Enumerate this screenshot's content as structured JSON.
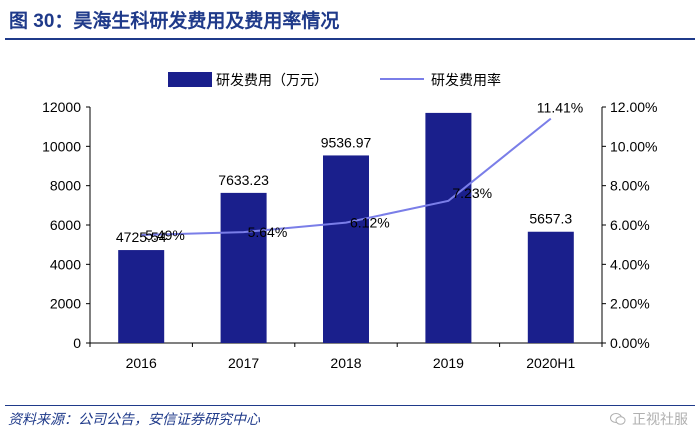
{
  "header": {
    "title": "图 30：昊海生科研发费用及费用率情况"
  },
  "footer": {
    "source": "资料来源：公司公告，安信证券研究中心",
    "watermark": "正视社服"
  },
  "colors": {
    "bar": "#1a1f8c",
    "line": "#7a7ee8",
    "accent": "#1f3a8a",
    "text": "#000000"
  },
  "chart_data": {
    "type": "bar+line",
    "title": "",
    "categories": [
      "2016",
      "2017",
      "2018",
      "2019",
      "2020H1"
    ],
    "series": [
      {
        "name": "研发费用（万元）",
        "kind": "bar",
        "axis": "left",
        "values": [
          4725.54,
          7633.23,
          9536.97,
          11700,
          5657.3
        ],
        "labels": [
          "4725.54",
          "7633.23",
          "9536.97",
          "",
          "5657.3"
        ]
      },
      {
        "name": "研发费用率",
        "kind": "line",
        "axis": "right",
        "values": [
          5.49,
          5.64,
          6.12,
          7.23,
          11.41
        ],
        "labels": [
          "5.49%",
          "5.64%",
          "6.12%",
          "7.23%",
          "11.41%"
        ]
      }
    ],
    "y_left": {
      "min": 0,
      "max": 12000,
      "step": 2000,
      "ticks": [
        "0",
        "2000",
        "4000",
        "6000",
        "8000",
        "10000",
        "12000"
      ]
    },
    "y_right": {
      "min": 0,
      "max": 12,
      "step": 2,
      "ticks": [
        "0.00%",
        "2.00%",
        "4.00%",
        "6.00%",
        "8.00%",
        "10.00%",
        "12.00%"
      ]
    },
    "legend_position": "top",
    "grid": false
  }
}
